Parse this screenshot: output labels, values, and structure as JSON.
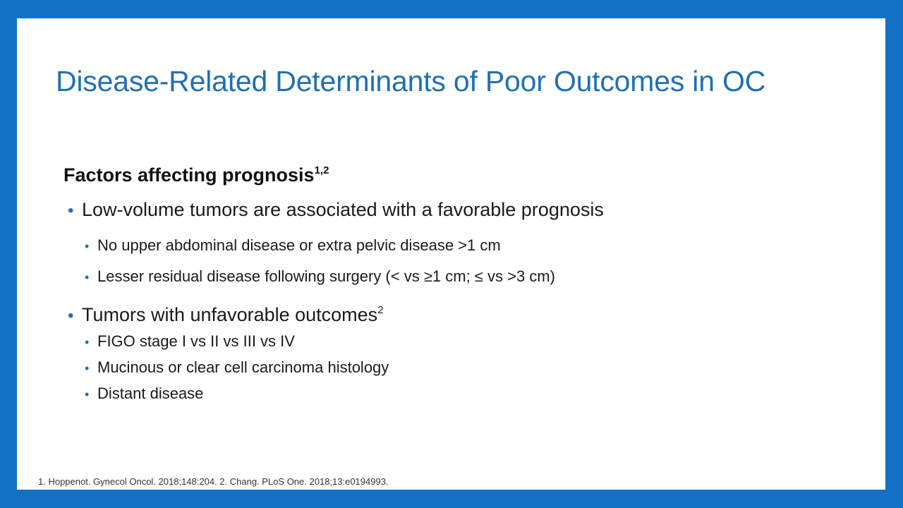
{
  "slide": {
    "title": "Disease-Related Determinants of Poor Outcomes in OC",
    "subheading": {
      "text": "Factors affecting prognosis",
      "sup": "1,2"
    },
    "bullets": [
      {
        "text": "Low-volume tumors are associated with a favorable prognosis",
        "sub": [
          "No upper abdominal disease or extra pelvic disease >1 cm",
          "Lesser residual disease following surgery (< vs ≥1 cm; ≤ vs >3 cm)"
        ]
      },
      {
        "text": "Tumors with unfavorable outcomes",
        "sup": "2",
        "sub": [
          "FIGO stage I vs II vs III vs IV",
          "Mucinous or clear cell carcinoma histology",
          "Distant disease"
        ]
      }
    ],
    "footnote": "1. Hoppenot. Gynecol Oncol. 2018;148:204. 2. Chang. PLoS One. 2018;13:e0194993."
  },
  "colors": {
    "border": "#1370C4",
    "title": "#1F6FB5",
    "bullet": "#1F6FB5"
  }
}
